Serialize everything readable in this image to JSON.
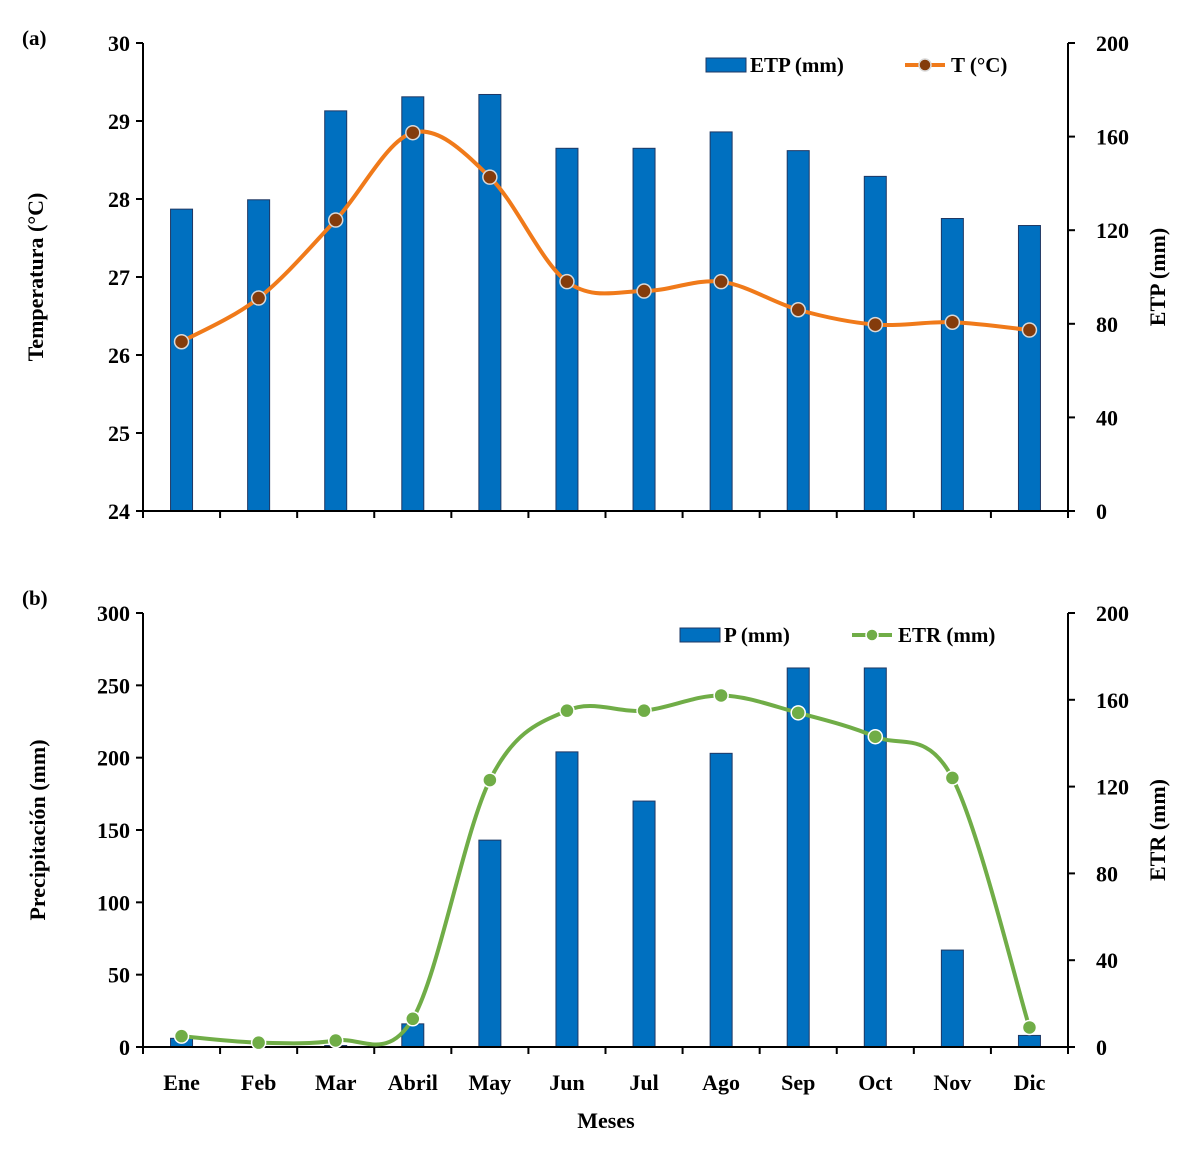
{
  "months": [
    "Ene",
    "Feb",
    "Mar",
    "Abril",
    "May",
    "Jun",
    "Jul",
    "Ago",
    "Sep",
    "Oct",
    "Nov",
    "Dic"
  ],
  "xlabel": "Meses",
  "colors": {
    "bar": "#0070c0",
    "bar_stroke": "#1f3864",
    "temp": "#f07a1a",
    "temp_marker": "#843c0c",
    "etr": "#70ad47",
    "etr_marker": "#70ad47"
  },
  "chart_data": [
    {
      "panel": "(a)",
      "type": "bar+line",
      "ylabel_left": "Temperatura  (°C)",
      "ylabel_right": "ETP (mm)",
      "ylim_left": [
        24,
        30
      ],
      "ylim_right": [
        0,
        200
      ],
      "yticks_left": [
        "30",
        "29",
        "28",
        "27",
        "26",
        "25",
        "24"
      ],
      "yticks_right": [
        "200",
        "160",
        "120",
        "80",
        "40",
        "0"
      ],
      "legend": {
        "bar": "ETP (mm)",
        "line": "T (°C)",
        "position": "top-right"
      },
      "bars": {
        "name": "ETP (mm)",
        "axis": "right",
        "values": [
          129,
          133,
          171,
          177,
          178,
          155,
          155,
          162,
          154,
          143,
          125,
          122
        ]
      },
      "line": {
        "name": "T (°C)",
        "axis": "left",
        "values": [
          26.17,
          26.73,
          27.73,
          28.85,
          28.28,
          26.94,
          26.82,
          26.94,
          26.58,
          26.39,
          26.42,
          26.32
        ]
      }
    },
    {
      "panel": "(b)",
      "type": "bar+line",
      "ylabel_left": "Precipitación (mm)",
      "ylabel_right": "ETR (mm)",
      "ylim_left": [
        0,
        300
      ],
      "ylim_right": [
        0,
        200
      ],
      "yticks_left": [
        "300",
        "250",
        "200",
        "150",
        "100",
        "50",
        "0"
      ],
      "yticks_right": [
        "200",
        "160",
        "120",
        "80",
        "40",
        "0"
      ],
      "legend": {
        "bar": "P (mm)",
        "line": "ETR (mm)",
        "position": "top-right"
      },
      "bars": {
        "name": "P (mm)",
        "axis": "left",
        "values": [
          6,
          0,
          1,
          16,
          143,
          204,
          170,
          203,
          262,
          262,
          67,
          8
        ]
      },
      "line": {
        "name": "ETR (mm)",
        "axis": "right",
        "values": [
          5,
          2,
          3,
          13,
          123,
          155,
          155,
          162,
          154,
          143,
          124,
          9
        ]
      }
    }
  ]
}
